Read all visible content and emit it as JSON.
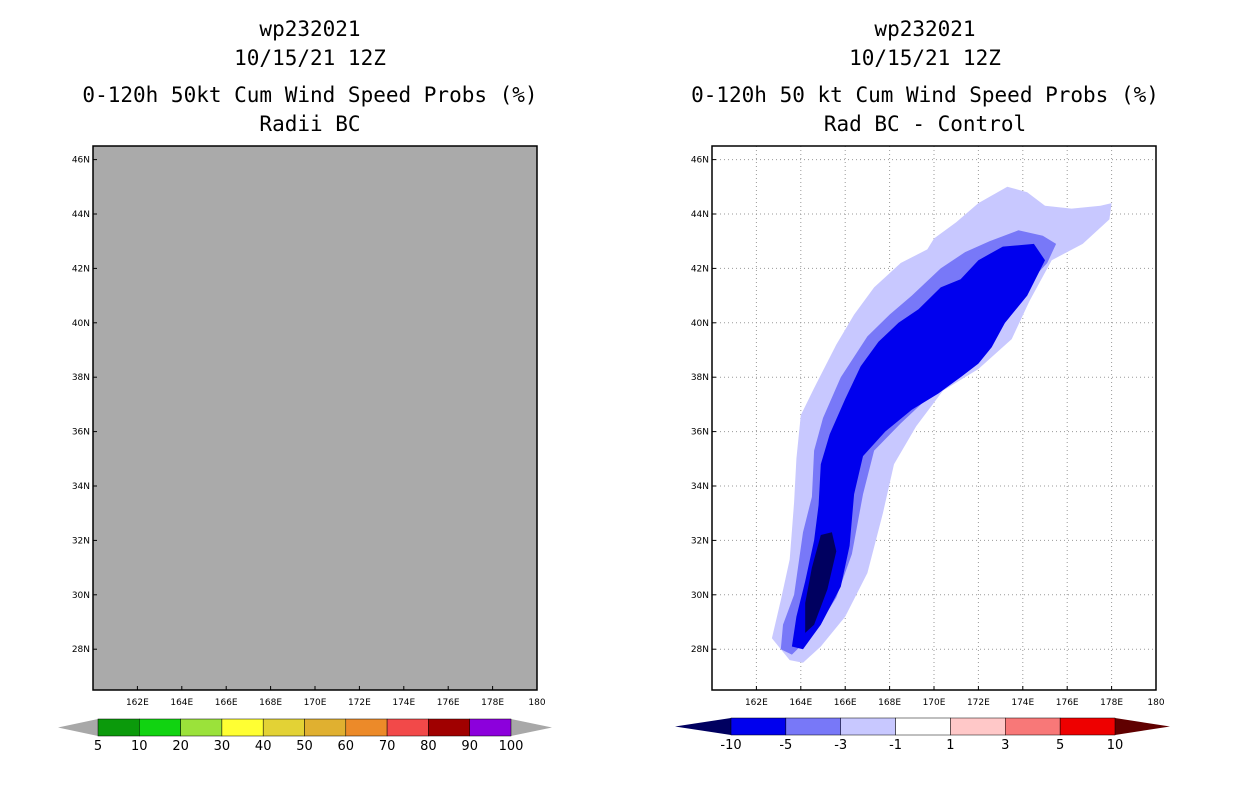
{
  "left_panel": {
    "storm_id": "wp232021",
    "datetime": "10/15/21 12Z",
    "product": "0-120h 50kt Cum Wind Speed Probs (%)",
    "subtitle": "Radii BC"
  },
  "right_panel": {
    "storm_id": "wp232021",
    "datetime": "10/15/21 12Z",
    "product": "0-120h 50 kt Cum Wind Speed Probs (%)",
    "subtitle": "Rad BC - Control"
  },
  "chart_data": [
    {
      "type": "heatmap",
      "title": "0-120h 50kt Cum Wind Speed Probs (%) — Radii BC",
      "xlim": [
        160,
        180
      ],
      "ylim": [
        26.5,
        46.5
      ],
      "x_ticks": [
        162,
        164,
        166,
        168,
        170,
        172,
        174,
        176,
        178,
        180
      ],
      "x_tick_labels": [
        "162E",
        "164E",
        "166E",
        "168E",
        "170E",
        "172E",
        "174E",
        "176E",
        "178E",
        "180"
      ],
      "y_ticks": [
        28,
        30,
        32,
        34,
        36,
        38,
        40,
        42,
        44,
        46
      ],
      "y_tick_labels": [
        "28N",
        "30N",
        "32N",
        "34N",
        "36N",
        "38N",
        "40N",
        "42N",
        "44N",
        "46N"
      ],
      "field": "undefined (entire domain shaded grey)",
      "fill_color": "#aaaaaa",
      "colorbar": {
        "levels": [
          "5",
          "10",
          "20",
          "30",
          "40",
          "50",
          "60",
          "70",
          "80",
          "90",
          "100"
        ],
        "colors": [
          "#0b9a0b",
          "#11d311",
          "#9be23a",
          "#ffff33",
          "#e3d235",
          "#e0b030",
          "#ec8a29",
          "#f24949",
          "#a00000",
          "#8c00dc"
        ],
        "end_colors": [
          "#a8a8a8",
          "#a8a8a8"
        ]
      }
    },
    {
      "type": "heatmap",
      "title": "0-120h 50 kt Cum Wind Speed Probs (%) — Rad BC - Control",
      "xlim": [
        160,
        180
      ],
      "ylim": [
        26.5,
        46.5
      ],
      "grid": true,
      "x_ticks": [
        162,
        164,
        166,
        168,
        170,
        172,
        174,
        176,
        178,
        180
      ],
      "x_tick_labels": [
        "162E",
        "164E",
        "166E",
        "168E",
        "170E",
        "172E",
        "174E",
        "176E",
        "178E",
        "180"
      ],
      "y_ticks": [
        28,
        30,
        32,
        34,
        36,
        38,
        40,
        42,
        44,
        46
      ],
      "y_tick_labels": [
        "28N",
        "30N",
        "32N",
        "34N",
        "36N",
        "38N",
        "40N",
        "42N",
        "44N",
        "46N"
      ],
      "contours": [
        {
          "band": "-3 to -1",
          "color": "#c8c8ff",
          "polygon": [
            [
              163.5,
              27.6
            ],
            [
              164.1,
              27.5
            ],
            [
              164.9,
              28.1
            ],
            [
              166.0,
              29.2
            ],
            [
              167.0,
              30.8
            ],
            [
              167.7,
              33.0
            ],
            [
              168.2,
              34.8
            ],
            [
              169.2,
              36.2
            ],
            [
              170.4,
              37.5
            ],
            [
              172.0,
              38.3
            ],
            [
              173.5,
              39.4
            ],
            [
              174.3,
              40.8
            ],
            [
              175.3,
              42.3
            ],
            [
              176.7,
              42.9
            ],
            [
              177.9,
              43.8
            ],
            [
              178.0,
              44.4
            ],
            [
              177.5,
              44.3
            ],
            [
              176.2,
              44.2
            ],
            [
              175.0,
              44.3
            ],
            [
              174.2,
              44.8
            ],
            [
              173.3,
              45.0
            ],
            [
              172.0,
              44.4
            ],
            [
              171.0,
              43.7
            ],
            [
              170.0,
              43.1
            ],
            [
              169.7,
              42.7
            ],
            [
              168.5,
              42.2
            ],
            [
              167.3,
              41.3
            ],
            [
              166.4,
              40.3
            ],
            [
              165.6,
              39.2
            ],
            [
              164.6,
              37.6
            ],
            [
              164.0,
              36.6
            ],
            [
              163.8,
              35.0
            ],
            [
              163.7,
              33.4
            ],
            [
              163.5,
              31.3
            ],
            [
              163.1,
              29.8
            ],
            [
              162.7,
              28.4
            ]
          ]
        },
        {
          "band": "-5 to -3",
          "color": "#7878f8",
          "polygon": [
            [
              163.1,
              28.0
            ],
            [
              163.6,
              27.8
            ],
            [
              164.6,
              28.6
            ],
            [
              165.6,
              29.9
            ],
            [
              166.3,
              31.5
            ],
            [
              166.8,
              33.7
            ],
            [
              167.3,
              35.3
            ],
            [
              168.5,
              36.3
            ],
            [
              169.8,
              37.3
            ],
            [
              171.0,
              38.0
            ],
            [
              172.2,
              39.0
            ],
            [
              173.4,
              40.2
            ],
            [
              174.3,
              41.5
            ],
            [
              175.1,
              42.2
            ],
            [
              175.5,
              42.9
            ],
            [
              174.9,
              43.2
            ],
            [
              173.8,
              43.4
            ],
            [
              172.5,
              43.0
            ],
            [
              171.4,
              42.6
            ],
            [
              170.3,
              42.0
            ],
            [
              169.0,
              41.0
            ],
            [
              168.0,
              40.3
            ],
            [
              167.0,
              39.5
            ],
            [
              165.8,
              38.0
            ],
            [
              165.0,
              36.5
            ],
            [
              164.6,
              35.3
            ],
            [
              164.5,
              33.6
            ],
            [
              164.1,
              32.3
            ],
            [
              163.7,
              30.0
            ],
            [
              163.2,
              28.9
            ]
          ]
        },
        {
          "band": "-10 to -5",
          "color": "#0000ee",
          "polygon": [
            [
              163.6,
              28.1
            ],
            [
              164.1,
              28.0
            ],
            [
              164.9,
              28.9
            ],
            [
              165.8,
              30.3
            ],
            [
              166.2,
              31.8
            ],
            [
              166.4,
              33.7
            ],
            [
              166.8,
              35.1
            ],
            [
              167.8,
              36.0
            ],
            [
              169.0,
              36.8
            ],
            [
              170.2,
              37.4
            ],
            [
              171.2,
              38.0
            ],
            [
              172.0,
              38.5
            ],
            [
              172.6,
              39.1
            ],
            [
              173.2,
              40.0
            ],
            [
              174.2,
              41.0
            ],
            [
              175.0,
              42.3
            ],
            [
              174.5,
              42.9
            ],
            [
              173.1,
              42.8
            ],
            [
              172.0,
              42.3
            ],
            [
              171.2,
              41.6
            ],
            [
              170.3,
              41.3
            ],
            [
              169.3,
              40.5
            ],
            [
              168.4,
              40.0
            ],
            [
              167.5,
              39.3
            ],
            [
              166.7,
              38.4
            ],
            [
              166.0,
              37.2
            ],
            [
              165.3,
              35.9
            ],
            [
              164.9,
              34.8
            ],
            [
              164.8,
              33.3
            ],
            [
              164.6,
              32.0
            ],
            [
              164.2,
              30.5
            ],
            [
              163.8,
              29.2
            ]
          ]
        },
        {
          "band": "< -10",
          "color": "#000060",
          "polygon": [
            [
              164.2,
              28.6
            ],
            [
              164.6,
              28.9
            ],
            [
              165.2,
              30.2
            ],
            [
              165.6,
              31.6
            ],
            [
              165.4,
              32.3
            ],
            [
              164.9,
              32.2
            ],
            [
              164.5,
              31.0
            ],
            [
              164.2,
              29.7
            ]
          ]
        }
      ],
      "colorbar": {
        "levels": [
          "-10",
          "-5",
          "-3",
          "-1",
          "1",
          "3",
          "5",
          "10"
        ],
        "colors": [
          "#0000ee",
          "#7878f8",
          "#c8c8ff",
          "#ffffff",
          "#ffc8c8",
          "#f87878",
          "#ee0000"
        ],
        "end_colors": [
          "#000060",
          "#600000"
        ]
      }
    }
  ]
}
